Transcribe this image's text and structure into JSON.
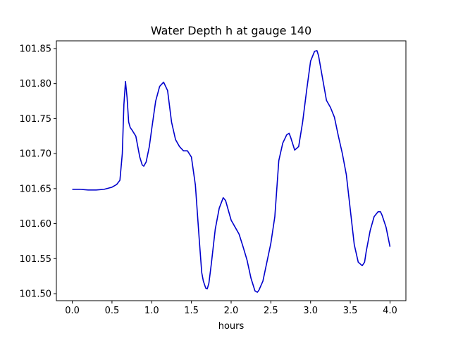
{
  "chart_data": {
    "type": "line",
    "title": "Water Depth h at gauge 140",
    "xlabel": "hours",
    "ylabel": "",
    "xlim": [
      -0.2,
      4.2
    ],
    "ylim": [
      101.49,
      101.861
    ],
    "xticks": [
      "0.0",
      "0.5",
      "1.0",
      "1.5",
      "2.0",
      "2.5",
      "3.0",
      "3.5",
      "4.0"
    ],
    "yticks": [
      "101.50",
      "101.55",
      "101.60",
      "101.65",
      "101.70",
      "101.75",
      "101.80",
      "101.85"
    ],
    "grid": false,
    "series": [
      {
        "color": "#0000cc",
        "x": [
          0.0,
          0.1,
          0.2,
          0.3,
          0.4,
          0.5,
          0.56,
          0.6,
          0.63,
          0.65,
          0.67,
          0.69,
          0.71,
          0.73,
          0.75,
          0.8,
          0.85,
          0.88,
          0.9,
          0.93,
          0.97,
          1.0,
          1.05,
          1.1,
          1.15,
          1.2,
          1.25,
          1.3,
          1.35,
          1.4,
          1.45,
          1.5,
          1.55,
          1.6,
          1.63,
          1.65,
          1.68,
          1.7,
          1.72,
          1.75,
          1.8,
          1.85,
          1.9,
          1.93,
          1.95,
          2.0,
          2.05,
          2.1,
          2.15,
          2.2,
          2.25,
          2.3,
          2.33,
          2.35,
          2.4,
          2.45,
          2.5,
          2.55,
          2.6,
          2.65,
          2.7,
          2.73,
          2.75,
          2.8,
          2.85,
          2.9,
          2.95,
          3.0,
          3.05,
          3.08,
          3.1,
          3.15,
          3.2,
          3.25,
          3.3,
          3.35,
          3.4,
          3.45,
          3.5,
          3.55,
          3.6,
          3.65,
          3.68,
          3.7,
          3.75,
          3.8,
          3.85,
          3.88,
          3.9,
          3.95,
          4.0
        ],
        "y": [
          101.649,
          101.649,
          101.648,
          101.648,
          101.649,
          101.652,
          101.656,
          101.662,
          101.7,
          101.77,
          101.803,
          101.78,
          101.745,
          101.737,
          101.734,
          101.725,
          101.695,
          101.684,
          101.682,
          101.688,
          101.71,
          101.735,
          101.775,
          101.796,
          101.802,
          101.79,
          101.745,
          101.72,
          101.71,
          101.704,
          101.704,
          101.695,
          101.655,
          101.575,
          101.53,
          101.518,
          101.508,
          101.507,
          101.515,
          101.542,
          101.592,
          101.622,
          101.637,
          101.633,
          101.625,
          101.605,
          101.595,
          101.585,
          101.567,
          101.548,
          101.522,
          101.504,
          101.502,
          101.505,
          101.518,
          101.545,
          101.572,
          101.61,
          101.69,
          101.715,
          101.727,
          101.729,
          101.723,
          101.705,
          101.71,
          101.745,
          101.79,
          101.832,
          101.846,
          101.847,
          101.84,
          101.808,
          101.776,
          101.766,
          101.752,
          101.725,
          101.7,
          101.67,
          101.62,
          101.57,
          101.545,
          101.54,
          101.545,
          101.56,
          101.59,
          101.61,
          101.617,
          101.617,
          101.612,
          101.595,
          101.567
        ]
      }
    ]
  }
}
